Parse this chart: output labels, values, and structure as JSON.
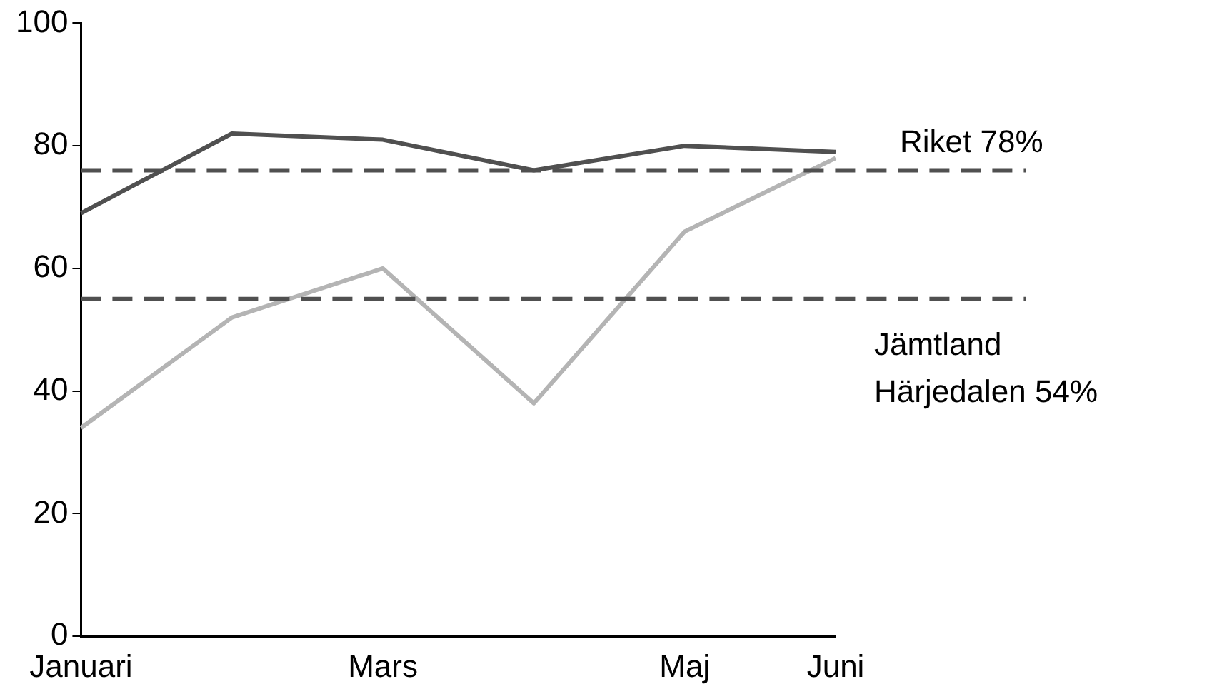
{
  "chart_data": {
    "type": "line",
    "categories": [
      "Januari",
      null,
      "Mars",
      null,
      "Maj",
      "Juni"
    ],
    "series": [
      {
        "color": "#505050",
        "values": [
          69,
          82,
          81,
          76,
          80,
          79
        ]
      },
      {
        "color": "#b4b4b4",
        "values": [
          34,
          52,
          60,
          38,
          66,
          78
        ]
      }
    ],
    "ylim": [
      0,
      100
    ],
    "yticks": [
      0,
      20,
      40,
      60,
      80,
      100
    ],
    "grid": false,
    "legend": false,
    "marker": "none",
    "line_style": "solid",
    "ref_lines": [
      {
        "axis": "y",
        "value": 76,
        "label": "Riket 78%",
        "color": "#505050",
        "line_style": "dashed"
      },
      {
        "axis": "y",
        "value": 55,
        "label": "Jämtland Härjedalen 54%",
        "color": "#505050",
        "line_style": "dashed"
      }
    ]
  }
}
